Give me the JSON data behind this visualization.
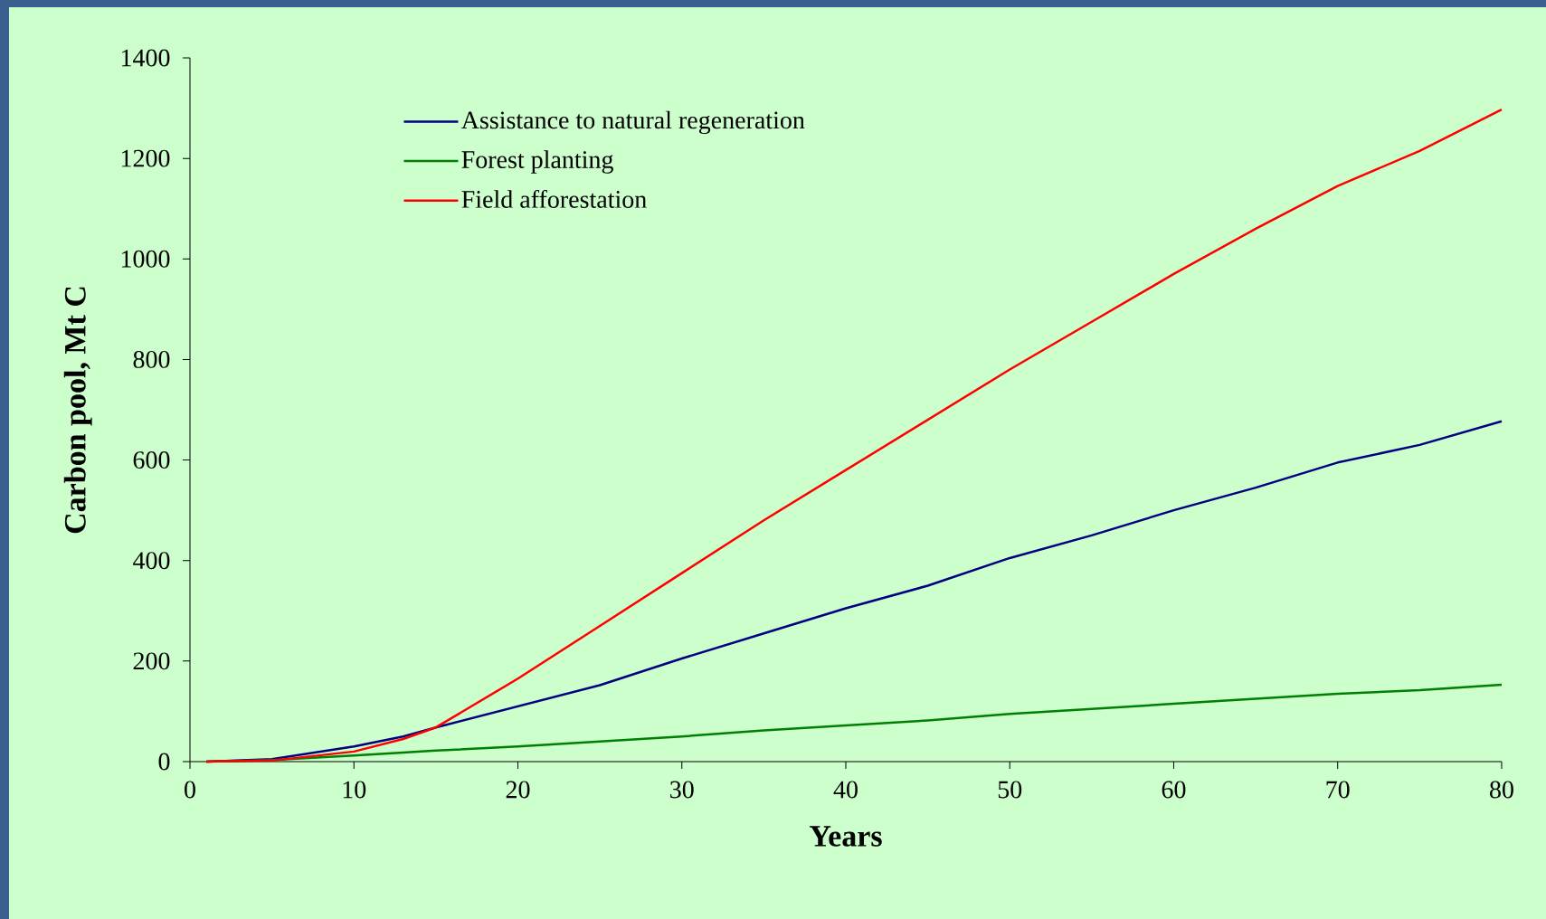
{
  "chart_data": {
    "type": "line",
    "xlabel": "Years",
    "ylabel": "Carbon pool, Mt C",
    "x": [
      1,
      5,
      10,
      13,
      15,
      20,
      25,
      30,
      35,
      40,
      45,
      50,
      55,
      60,
      65,
      70,
      75,
      80
    ],
    "series": [
      {
        "name": "Assistance to natural regeneration",
        "color": "#000080",
        "values": [
          0,
          5,
          30,
          50,
          68,
          110,
          152,
          205,
          255,
          305,
          350,
          405,
          450,
          500,
          545,
          595,
          630,
          677
        ]
      },
      {
        "name": "Forest planting",
        "color": "#008000",
        "values": [
          0,
          3,
          12,
          18,
          22,
          30,
          40,
          50,
          62,
          72,
          82,
          95,
          105,
          115,
          125,
          135,
          142,
          153
        ]
      },
      {
        "name": "Field afforestation",
        "color": "#ff0000",
        "values": [
          0,
          2,
          20,
          45,
          68,
          165,
          270,
          375,
          480,
          580,
          680,
          780,
          875,
          970,
          1060,
          1145,
          1215,
          1297
        ]
      }
    ],
    "xlim": [
      0,
      80
    ],
    "ylim": [
      0,
      1400
    ],
    "xticks": [
      0,
      10,
      20,
      30,
      40,
      50,
      60,
      70,
      80
    ],
    "yticks": [
      0,
      200,
      400,
      600,
      800,
      1000,
      1200,
      1400
    ],
    "grid": false,
    "legend": "top left",
    "marker": "none",
    "line_style": "solid"
  }
}
